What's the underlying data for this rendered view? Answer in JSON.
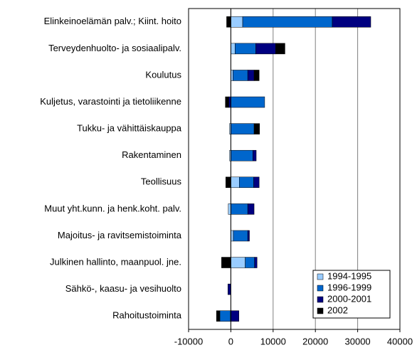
{
  "chart_data": {
    "type": "stacked-barh",
    "categories": [
      "Elinkeinoelämän palv.; Kiint. hoito",
      "Terveydenhuolto- ja sosiaalipalv.",
      "Koulutus",
      "Kuljetus, varastointi ja tietoliikenne",
      "Tukku- ja vähittäiskauppa",
      "Rakentaminen",
      "Teollisuus",
      "Muut yht.kunn. ja henk.koht. palv.",
      "Majoitus- ja ravitsemistoiminta",
      "Julkinen hallinto, maanpuol. jne.",
      "Sähkö-, kaasu- ja vesihuolto",
      "Rahoitustoiminta"
    ],
    "series": [
      {
        "name": "1994-1995",
        "color": "#99ccff",
        "values": [
          2800,
          1000,
          500,
          0,
          -300,
          -300,
          2000,
          -600,
          600,
          3400,
          0,
          -100
        ]
      },
      {
        "name": "1996-1999",
        "color": "#0066cc",
        "values": [
          21200,
          4900,
          3500,
          8000,
          5500,
          5200,
          3400,
          4000,
          3400,
          2200,
          0,
          -2500
        ]
      },
      {
        "name": "2000-2001",
        "color": "#000080",
        "values": [
          9100,
          4700,
          1500,
          -500,
          0,
          800,
          1300,
          1500,
          400,
          600,
          -700,
          1900
        ]
      },
      {
        "name": "2002",
        "color": "#000000",
        "values": [
          -1000,
          2200,
          1200,
          -800,
          1300,
          0,
          -1200,
          0,
          0,
          -2200,
          0,
          -800
        ]
      }
    ],
    "xlim": [
      -10000,
      40000
    ],
    "xticks": [
      -10000,
      0,
      10000,
      20000,
      30000,
      40000
    ],
    "grid": true,
    "legend": "lower right"
  }
}
